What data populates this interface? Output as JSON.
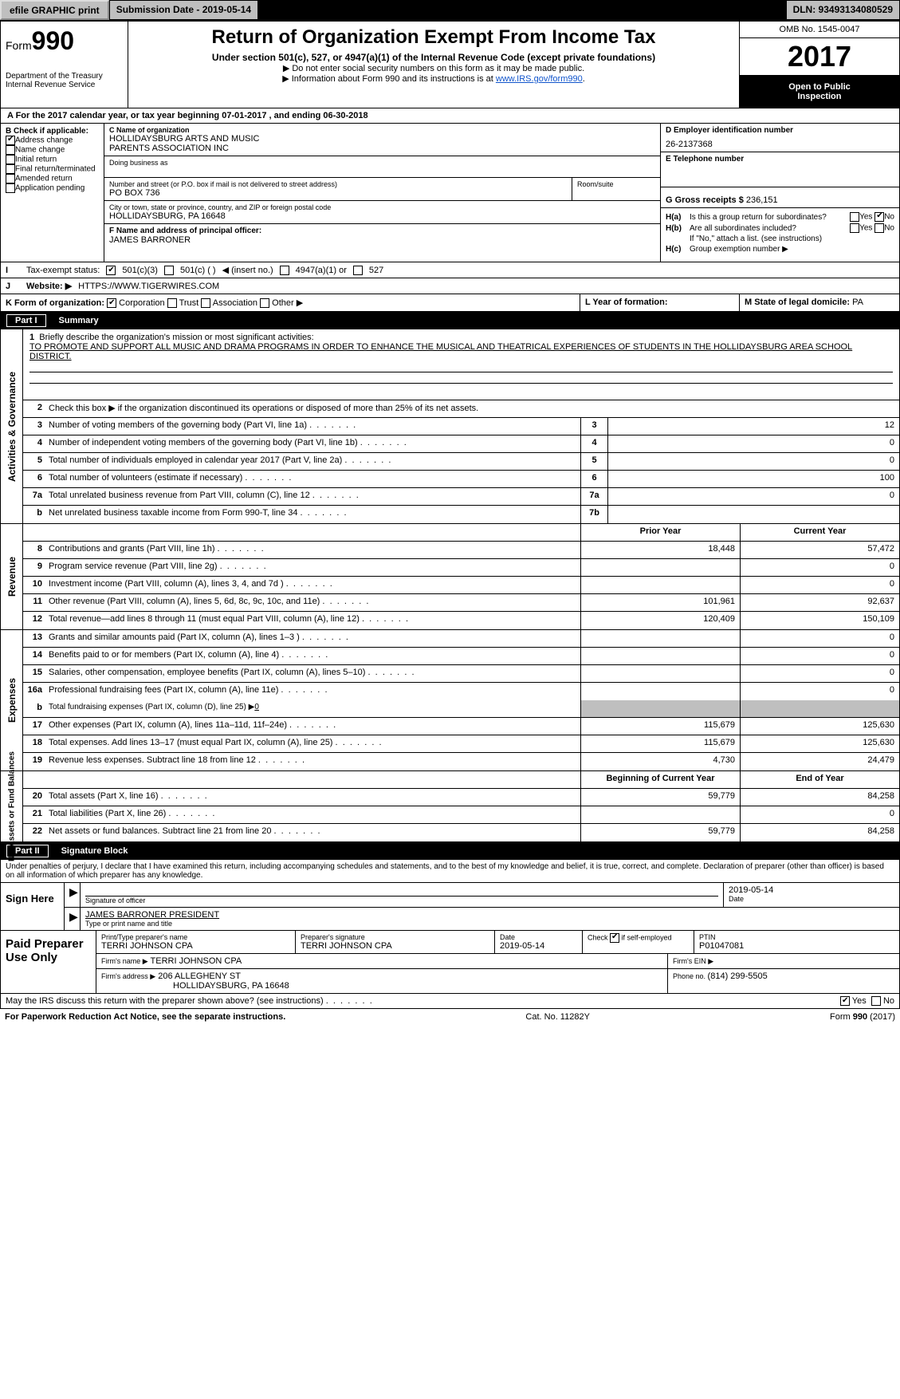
{
  "topbar": {
    "efile_btn": "efile GRAPHIC print",
    "submission": "Submission Date - 2019-05-14",
    "dln": "DLN: 93493134080529"
  },
  "header": {
    "form_label": "Form",
    "form_number": "990",
    "treasury1": "Department of the Treasury",
    "treasury2": "Internal Revenue Service",
    "title": "Return of Organization Exempt From Income Tax",
    "subtitle1": "Under section 501(c), 527, or 4947(a)(1) of the Internal Revenue Code (except private foundations)",
    "subtitle2": "▶ Do not enter social security numbers on this form as it may be made public.",
    "subtitle3_pre": "▶ Information about Form 990 and its instructions is at ",
    "subtitle3_link": "www.IRS.gov/form990",
    "omb": "OMB No. 1545-0047",
    "year": "2017",
    "open1": "Open to Public",
    "open2": "Inspection"
  },
  "rowA": {
    "text_pre": "A   For the 2017 calendar year, or tax year beginning ",
    "begin": "07-01-2017",
    "text_mid": " , and ending ",
    "end": "06-30-2018"
  },
  "colB": {
    "title": "B Check if applicable:",
    "items": [
      {
        "label": "Address change",
        "checked": true
      },
      {
        "label": "Name change",
        "checked": false
      },
      {
        "label": "Initial return",
        "checked": false
      },
      {
        "label": "Final return/terminated",
        "checked": false
      },
      {
        "label": "Amended return",
        "checked": false
      },
      {
        "label": "Application pending",
        "checked": false
      }
    ]
  },
  "orgC": {
    "name_lbl": "C Name of organization",
    "name1": "HOLLIDAYSBURG ARTS AND MUSIC",
    "name2": "PARENTS ASSOCIATION INC",
    "dba_lbl": "Doing business as",
    "addr_lbl": "Number and street (or P.O. box if mail is not delivered to street address)",
    "addr": "PO BOX 736",
    "room_lbl": "Room/suite",
    "city_lbl": "City or town, state or province, country, and ZIP or foreign postal code",
    "city": "HOLLIDAYSBURG, PA   16648",
    "officer_lbl": "F Name and address of principal officer:",
    "officer": "JAMES BARRONER"
  },
  "colD": {
    "ein_lbl": "D Employer identification number",
    "ein": "26-2137368",
    "tel_lbl": "E Telephone number",
    "gross_lbl": "G Gross receipts $ ",
    "gross": "236,151"
  },
  "Hblock": {
    "ha_lbl": "H(a)",
    "ha_txt": "Is this a group return for subordinates?",
    "hb_lbl": "H(b)",
    "hb_txt": "Are all subordinates included?",
    "hb_note": "If \"No,\" attach a list. (see instructions)",
    "hc_lbl": "H(c)",
    "hc_txt": "Group exemption number ▶",
    "yes": "Yes",
    "no": "No"
  },
  "lineI": {
    "lbl": "I",
    "txt": "Tax-exempt status:",
    "opt1": "501(c)(3)",
    "opt2_pre": "501(c) (   ) ",
    "opt2_ins": "◀ (insert no.)",
    "opt3": "4947(a)(1) or",
    "opt4": "527"
  },
  "lineJ": {
    "lbl": "J",
    "txt": "Website: ▶",
    "url": "HTTPS://WWW.TIGERWIRES.COM"
  },
  "lineK": {
    "lbl_pre": "K Form of organization:",
    "corp": "Corporation",
    "trust": "Trust",
    "assoc": "Association",
    "other": "Other ▶",
    "L_lbl": "L Year of formation:",
    "M_lbl": "M State of legal domicile: ",
    "M_val": "PA"
  },
  "partI": {
    "part": "Part I",
    "title": "Summary"
  },
  "briefly": {
    "num": "1",
    "lead": "Briefly describe the organization's mission or most significant activities:",
    "text": "TO PROMOTE AND SUPPORT ALL MUSIC AND DRAMA PROGRAMS IN ORDER TO ENHANCE THE MUSICAL AND THEATRICAL EXPERIENCES OF STUDENTS IN THE HOLLIDAYSBURG AREA SCHOOL DISTRICT."
  },
  "gov": {
    "tab": "Activities & Governance",
    "l2": "Check this box ▶        if the organization discontinued its operations or disposed of more than 25% of its net assets.",
    "rows": [
      {
        "n": "3",
        "t": "Number of voting members of the governing body (Part VI, line 1a)",
        "rn": "3",
        "v": "12"
      },
      {
        "n": "4",
        "t": "Number of independent voting members of the governing body (Part VI, line 1b)",
        "rn": "4",
        "v": "0"
      },
      {
        "n": "5",
        "t": "Total number of individuals employed in calendar year 2017 (Part V, line 2a)",
        "rn": "5",
        "v": "0"
      },
      {
        "n": "6",
        "t": "Total number of volunteers (estimate if necessary)",
        "rn": "6",
        "v": "100"
      },
      {
        "n": "7a",
        "t": "Total unrelated business revenue from Part VIII, column (C), line 12",
        "rn": "7a",
        "v": "0"
      },
      {
        "n": "b",
        "t": "Net unrelated business taxable income from Form 990-T, line 34",
        "rn": "7b",
        "v": ""
      }
    ]
  },
  "rev": {
    "tab": "Revenue",
    "hdr_prior": "Prior Year",
    "hdr_curr": "Current Year",
    "rows": [
      {
        "n": "8",
        "t": "Contributions and grants (Part VIII, line 1h)",
        "a": "18,448",
        "b": "57,472"
      },
      {
        "n": "9",
        "t": "Program service revenue (Part VIII, line 2g)",
        "a": "",
        "b": "0"
      },
      {
        "n": "10",
        "t": "Investment income (Part VIII, column (A), lines 3, 4, and 7d )",
        "a": "",
        "b": "0"
      },
      {
        "n": "11",
        "t": "Other revenue (Part VIII, column (A), lines 5, 6d, 8c, 9c, 10c, and 11e)",
        "a": "101,961",
        "b": "92,637"
      },
      {
        "n": "12",
        "t": "Total revenue—add lines 8 through 11 (must equal Part VIII, column (A), line 12)",
        "a": "120,409",
        "b": "150,109"
      }
    ]
  },
  "exp": {
    "tab": "Expenses",
    "rows": [
      {
        "n": "13",
        "t": "Grants and similar amounts paid (Part IX, column (A), lines 1–3 )",
        "a": "",
        "b": "0"
      },
      {
        "n": "14",
        "t": "Benefits paid to or for members (Part IX, column (A), line 4)",
        "a": "",
        "b": "0"
      },
      {
        "n": "15",
        "t": "Salaries, other compensation, employee benefits (Part IX, column (A), lines 5–10)",
        "a": "",
        "b": "0"
      },
      {
        "n": "16a",
        "t": "Professional fundraising fees (Part IX, column (A), line 11e)",
        "a": "",
        "b": "0"
      }
    ],
    "l16b_n": "b",
    "l16b_t": "Total fundraising expenses (Part IX, column (D), line 25) ▶",
    "l16b_v": "0",
    "rows2": [
      {
        "n": "17",
        "t": "Other expenses (Part IX, column (A), lines 11a–11d, 11f–24e)",
        "a": "115,679",
        "b": "125,630"
      },
      {
        "n": "18",
        "t": "Total expenses. Add lines 13–17 (must equal Part IX, column (A), line 25)",
        "a": "115,679",
        "b": "125,630"
      },
      {
        "n": "19",
        "t": "Revenue less expenses. Subtract line 18 from line 12",
        "a": "4,730",
        "b": "24,479"
      }
    ]
  },
  "net": {
    "tab": "Net Assets or Fund Balances",
    "hdr_a": "Beginning of Current Year",
    "hdr_b": "End of Year",
    "rows": [
      {
        "n": "20",
        "t": "Total assets (Part X, line 16)",
        "a": "59,779",
        "b": "84,258"
      },
      {
        "n": "21",
        "t": "Total liabilities (Part X, line 26)",
        "a": "",
        "b": "0"
      },
      {
        "n": "22",
        "t": "Net assets or fund balances. Subtract line 21 from line 20",
        "a": "59,779",
        "b": "84,258"
      }
    ]
  },
  "partII": {
    "part": "Part II",
    "title": "Signature Block"
  },
  "sig": {
    "decl": "Under penalties of perjury, I declare that I have examined this return, including accompanying schedules and statements, and to the best of my knowledge and belief, it is true, correct, and complete. Declaration of preparer (other than officer) is based on all information of which preparer has any knowledge.",
    "sign_here": "Sign Here",
    "sig_officer_lbl": "Signature of officer",
    "date_lbl": "Date",
    "date_val": "2019-05-14",
    "name_val": "JAMES BARRONER  PRESIDENT",
    "name_lbl": "Type or print name and title"
  },
  "paid": {
    "label": "Paid Preparer Use Only",
    "r1": {
      "c1_lbl": "Print/Type preparer's name",
      "c1_val": "TERRI JOHNSON CPA",
      "c2_lbl": "Preparer's signature",
      "c2_val": "TERRI JOHNSON CPA",
      "c3_lbl": "Date",
      "c3_val": "2019-05-14",
      "c4_pre": "Check",
      "c4_post": "if self-employed",
      "c5_lbl": "PTIN",
      "c5_val": "P01047081"
    },
    "r2": {
      "lbl": "Firm's name     ▶",
      "val": "TERRI JOHNSON CPA",
      "ein_lbl": "Firm's EIN ▶"
    },
    "r3": {
      "lbl": "Firm's address ▶",
      "val1": "206 ALLEGHENY ST",
      "val2": "HOLLIDAYSBURG, PA   16648",
      "ph_lbl": "Phone no. ",
      "ph_val": "(814) 299-5505"
    }
  },
  "discuss": {
    "txt": "May the IRS discuss this return with the preparer shown above? (see instructions)",
    "yes": "Yes",
    "no": "No"
  },
  "footer": {
    "left": "For Paperwork Reduction Act Notice, see the separate instructions.",
    "mid": "Cat. No. 11282Y",
    "right_pre": "Form ",
    "right_num": "990",
    "right_post": " (2017)"
  },
  "colors": {
    "black": "#000000",
    "grey": "#bfbfbf",
    "link": "#1155cc"
  }
}
